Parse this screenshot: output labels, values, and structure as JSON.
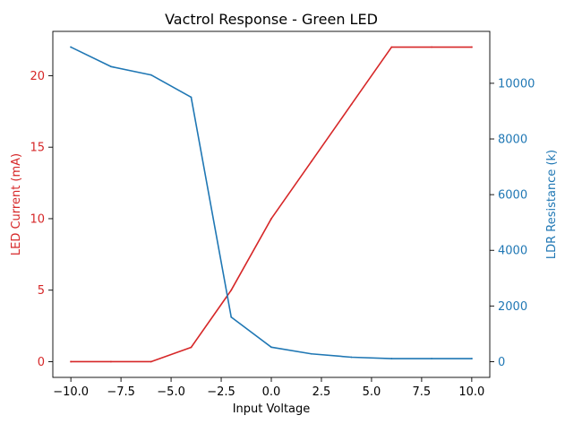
{
  "chart_data": {
    "type": "line",
    "title": "Vactrol Response - Green LED",
    "xlabel": "Input Voltage",
    "xlim": [
      -10.9,
      10.9
    ],
    "x_ticks": [
      -10.0,
      -7.5,
      -5.0,
      -2.5,
      0.0,
      2.5,
      5.0,
      7.5,
      10.0
    ],
    "x_tick_labels": [
      "−10.0",
      "−7.5",
      "−5.0",
      "−2.5",
      "0.0",
      "2.5",
      "5.0",
      "7.5",
      "10.0"
    ],
    "grid": false,
    "axes": {
      "left": {
        "label": "LED Current (mA)",
        "color": "#d62728",
        "ylim": [
          -1.1,
          23.1
        ],
        "ticks": [
          0,
          5,
          10,
          15,
          20
        ],
        "tick_labels": [
          "0",
          "5",
          "10",
          "15",
          "20"
        ]
      },
      "right": {
        "label": "LDR Resistance (k)",
        "color": "#1f77b4",
        "ylim": [
          -565,
          11865
        ],
        "ticks": [
          0,
          2000,
          4000,
          6000,
          8000,
          10000
        ],
        "tick_labels": [
          "0",
          "2000",
          "4000",
          "6000",
          "8000",
          "10000"
        ]
      }
    },
    "series": [
      {
        "axis": "left",
        "color": "#d62728",
        "x": [
          -10,
          -8,
          -6,
          -4,
          -2,
          0,
          2,
          4,
          6,
          8,
          10
        ],
        "values": [
          0,
          0,
          0,
          1,
          5,
          10,
          14,
          18,
          22,
          22,
          22
        ]
      },
      {
        "axis": "right",
        "color": "#1f77b4",
        "x": [
          -10,
          -8,
          -6,
          -4,
          -2,
          0,
          2,
          4,
          6,
          8,
          10
        ],
        "values": [
          11300,
          10600,
          10300,
          9500,
          1600,
          520,
          280,
          160,
          110,
          110,
          110
        ]
      }
    ]
  }
}
